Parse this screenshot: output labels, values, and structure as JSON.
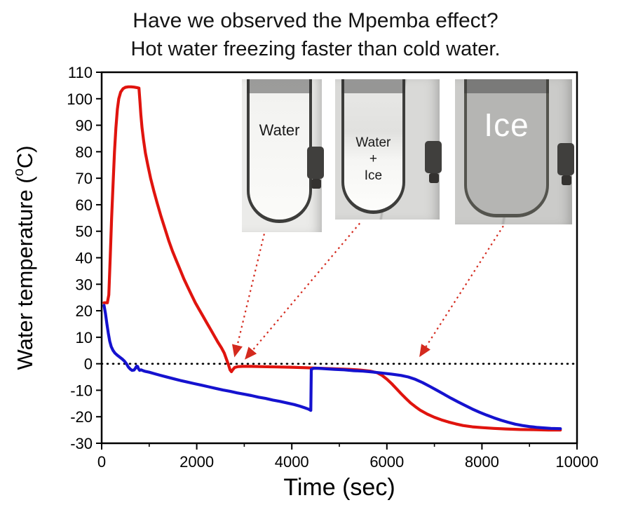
{
  "title": {
    "line1": "Have we observed the Mpemba effect?",
    "line2": "Hot water freezing faster than cold water."
  },
  "chart_data": {
    "type": "line",
    "xlabel": "Time (sec)",
    "ylabel_parts": [
      "Water temperature (",
      "o",
      "C)"
    ],
    "xlim": [
      0,
      10000
    ],
    "ylim": [
      -30,
      110
    ],
    "x_major_ticks": [
      0,
      2000,
      4000,
      6000,
      8000,
      10000
    ],
    "x_minor_step": 1000,
    "y_tick_step": 10,
    "grid": false,
    "legend": "none",
    "zero_reference_line": 0,
    "arrow_color": "#d42a1e",
    "series": [
      {
        "name": "hot-water",
        "color": "#e0140e",
        "points": [
          [
            50,
            23
          ],
          [
            120,
            23
          ],
          [
            150,
            26
          ],
          [
            180,
            40
          ],
          [
            210,
            55
          ],
          [
            240,
            68
          ],
          [
            270,
            80
          ],
          [
            300,
            89
          ],
          [
            330,
            96
          ],
          [
            360,
            100
          ],
          [
            400,
            102.5
          ],
          [
            450,
            103.8
          ],
          [
            500,
            104.3
          ],
          [
            560,
            104.5
          ],
          [
            620,
            104.5
          ],
          [
            680,
            104.4
          ],
          [
            740,
            104.2
          ],
          [
            785,
            104
          ],
          [
            805,
            99
          ],
          [
            825,
            94
          ],
          [
            850,
            89
          ],
          [
            880,
            84.5
          ],
          [
            920,
            79.5
          ],
          [
            970,
            75
          ],
          [
            1030,
            70
          ],
          [
            1100,
            65
          ],
          [
            1170,
            60.5
          ],
          [
            1250,
            55.5
          ],
          [
            1330,
            51
          ],
          [
            1410,
            46.5
          ],
          [
            1490,
            42.5
          ],
          [
            1570,
            39
          ],
          [
            1650,
            35.5
          ],
          [
            1730,
            32
          ],
          [
            1810,
            29
          ],
          [
            1890,
            26
          ],
          [
            1970,
            23
          ],
          [
            2050,
            20.5
          ],
          [
            2130,
            18
          ],
          [
            2210,
            15.5
          ],
          [
            2290,
            13
          ],
          [
            2370,
            10.5
          ],
          [
            2450,
            8
          ],
          [
            2520,
            6
          ],
          [
            2580,
            4
          ],
          [
            2630,
            1.5
          ],
          [
            2670,
            -0.5
          ],
          [
            2700,
            -2.3
          ],
          [
            2730,
            -3
          ],
          [
            2760,
            -2.2
          ],
          [
            2800,
            -1.4
          ],
          [
            2860,
            -1.1
          ],
          [
            2960,
            -1
          ],
          [
            3150,
            -1
          ],
          [
            3400,
            -1.1
          ],
          [
            3700,
            -1.2
          ],
          [
            4000,
            -1.3
          ],
          [
            4300,
            -1.5
          ],
          [
            4600,
            -1.7
          ],
          [
            4900,
            -1.9
          ],
          [
            5200,
            -2.1
          ],
          [
            5450,
            -2.4
          ],
          [
            5650,
            -2.8
          ],
          [
            5800,
            -3.4
          ],
          [
            5900,
            -4.4
          ],
          [
            6000,
            -5.8
          ],
          [
            6100,
            -7.5
          ],
          [
            6200,
            -9.4
          ],
          [
            6300,
            -11.3
          ],
          [
            6400,
            -13.1
          ],
          [
            6500,
            -14.8
          ],
          [
            6600,
            -16.2
          ],
          [
            6700,
            -17.5
          ],
          [
            6850,
            -19
          ],
          [
            7000,
            -20.2
          ],
          [
            7150,
            -21.2
          ],
          [
            7300,
            -22
          ],
          [
            7450,
            -22.7
          ],
          [
            7600,
            -23.3
          ],
          [
            7800,
            -23.8
          ],
          [
            8000,
            -24.1
          ],
          [
            8250,
            -24.4
          ],
          [
            8500,
            -24.6
          ],
          [
            8800,
            -24.8
          ],
          [
            9100,
            -24.9
          ],
          [
            9400,
            -25
          ],
          [
            9650,
            -25
          ]
        ]
      },
      {
        "name": "cold-water",
        "color": "#1512cf",
        "points": [
          [
            50,
            22
          ],
          [
            80,
            19
          ],
          [
            110,
            15
          ],
          [
            140,
            11.5
          ],
          [
            170,
            8.5
          ],
          [
            200,
            6.5
          ],
          [
            240,
            5
          ],
          [
            280,
            4
          ],
          [
            330,
            3.2
          ],
          [
            380,
            2.5
          ],
          [
            430,
            1.8
          ],
          [
            480,
            1
          ],
          [
            520,
            0
          ],
          [
            560,
            -1.2
          ],
          [
            600,
            -2
          ],
          [
            640,
            -2.5
          ],
          [
            680,
            -2.4
          ],
          [
            710,
            -1.7
          ],
          [
            735,
            -0.9
          ],
          [
            755,
            -1
          ],
          [
            775,
            -1.9
          ],
          [
            800,
            -2.5
          ],
          [
            830,
            -2.3
          ],
          [
            870,
            -2.6
          ],
          [
            920,
            -2.9
          ],
          [
            1000,
            -3.2
          ],
          [
            1100,
            -3.7
          ],
          [
            1220,
            -4.3
          ],
          [
            1350,
            -4.9
          ],
          [
            1500,
            -5.6
          ],
          [
            1650,
            -6.3
          ],
          [
            1800,
            -6.9
          ],
          [
            1950,
            -7.5
          ],
          [
            2100,
            -8.1
          ],
          [
            2250,
            -8.7
          ],
          [
            2400,
            -9.3
          ],
          [
            2550,
            -9.9
          ],
          [
            2700,
            -10.4
          ],
          [
            2850,
            -11
          ],
          [
            3000,
            -11.5
          ],
          [
            3150,
            -12
          ],
          [
            3300,
            -12.6
          ],
          [
            3450,
            -13.1
          ],
          [
            3600,
            -13.7
          ],
          [
            3750,
            -14.2
          ],
          [
            3900,
            -14.8
          ],
          [
            4050,
            -15.4
          ],
          [
            4170,
            -16
          ],
          [
            4270,
            -16.6
          ],
          [
            4350,
            -17.1
          ],
          [
            4400,
            -17.6
          ],
          [
            4410,
            -2.1
          ],
          [
            4460,
            -1.7
          ],
          [
            4560,
            -1.7
          ],
          [
            4700,
            -1.9
          ],
          [
            4900,
            -2.1
          ],
          [
            5100,
            -2.3
          ],
          [
            5300,
            -2.6
          ],
          [
            5500,
            -2.8
          ],
          [
            5700,
            -3.1
          ],
          [
            5900,
            -3.5
          ],
          [
            6100,
            -3.9
          ],
          [
            6300,
            -4.4
          ],
          [
            6450,
            -5
          ],
          [
            6600,
            -5.9
          ],
          [
            6750,
            -7.1
          ],
          [
            6900,
            -8.5
          ],
          [
            7050,
            -10
          ],
          [
            7200,
            -11.5
          ],
          [
            7350,
            -13
          ],
          [
            7500,
            -14.4
          ],
          [
            7650,
            -15.8
          ],
          [
            7800,
            -17.1
          ],
          [
            7950,
            -18.3
          ],
          [
            8100,
            -19.4
          ],
          [
            8250,
            -20.4
          ],
          [
            8400,
            -21.3
          ],
          [
            8550,
            -22.1
          ],
          [
            8700,
            -22.8
          ],
          [
            8850,
            -23.3
          ],
          [
            9000,
            -23.7
          ],
          [
            9150,
            -24
          ],
          [
            9300,
            -24.2
          ],
          [
            9450,
            -24.4
          ],
          [
            9650,
            -24.5
          ]
        ]
      }
    ],
    "arrows": [
      {
        "from": [
          3420,
          49
        ],
        "to": [
          2800,
          3
        ]
      },
      {
        "from": [
          5430,
          53
        ],
        "to": [
          3030,
          2
        ]
      },
      {
        "from": [
          8450,
          52
        ],
        "to": [
          6700,
          3
        ]
      }
    ]
  },
  "insets": [
    {
      "name": "water",
      "label": "Water"
    },
    {
      "name": "water-ice",
      "label_lines": [
        "Water",
        "+",
        "Ice"
      ]
    },
    {
      "name": "ice",
      "label": "Ice"
    }
  ]
}
